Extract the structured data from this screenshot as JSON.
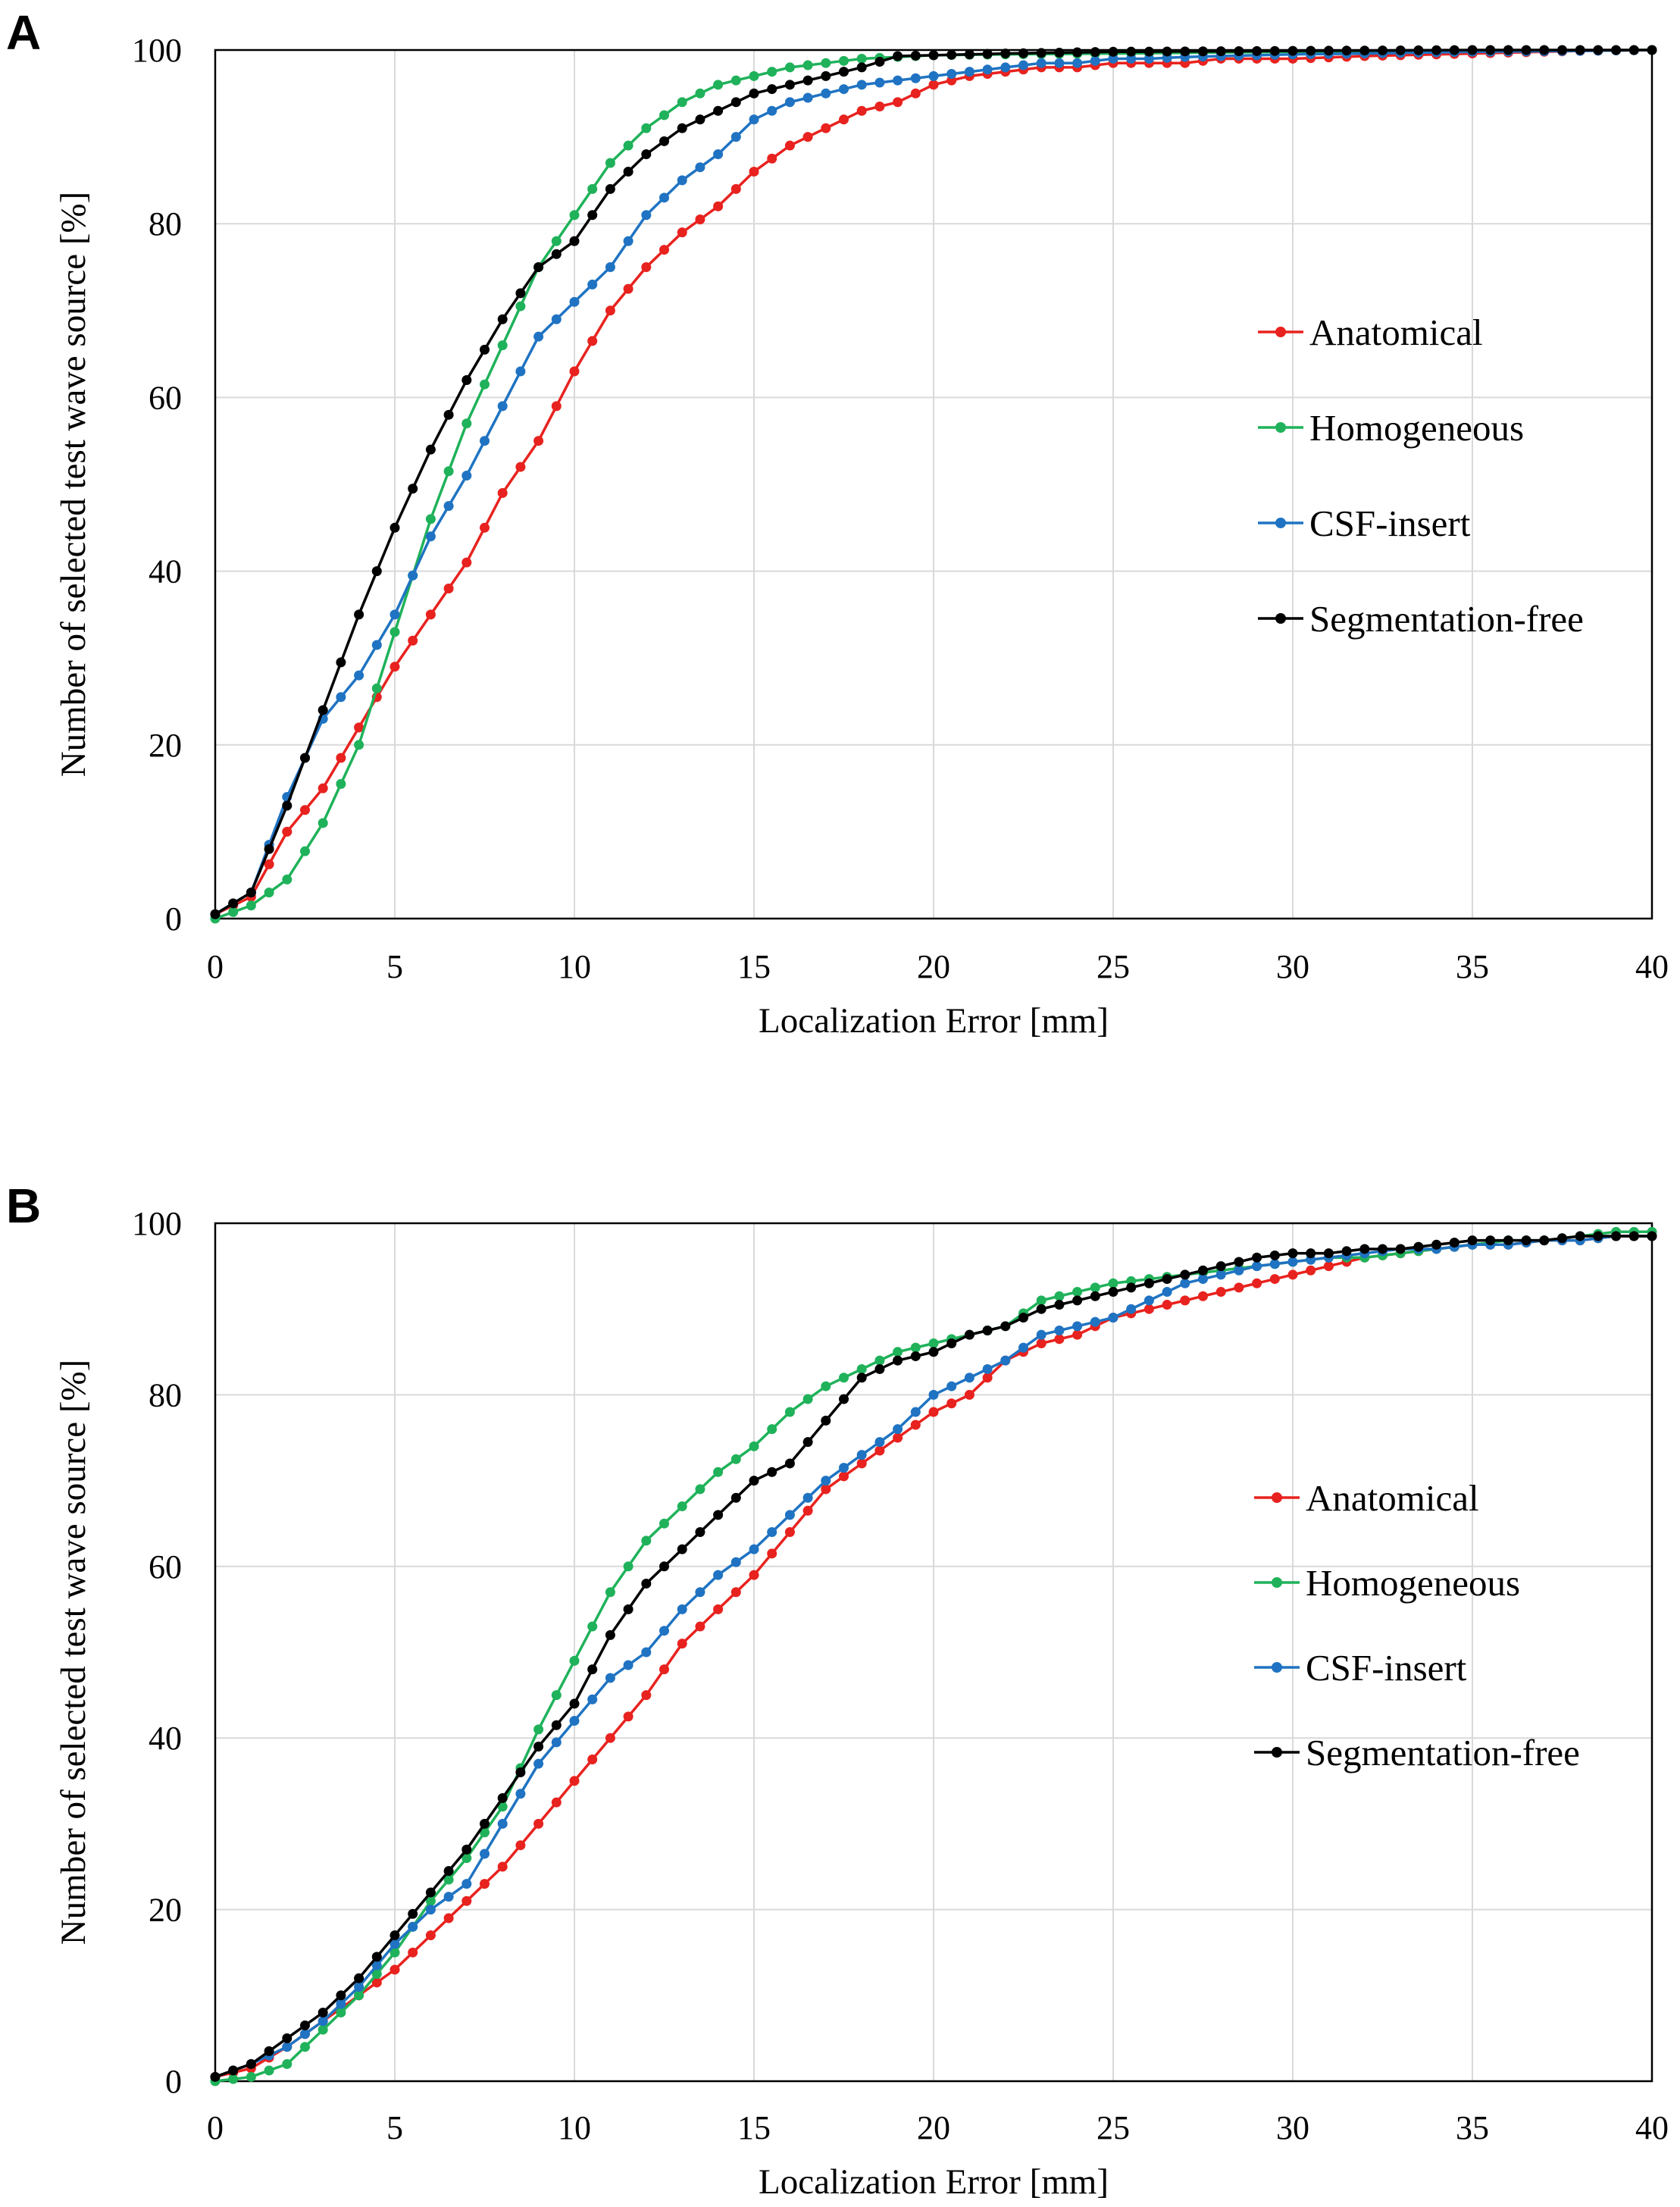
{
  "panels": [
    {
      "label": "A"
    },
    {
      "label": "B"
    }
  ],
  "colors": {
    "Anatomical": "#e8221e",
    "Homogeneous": "#1fb25a",
    "CSF-insert": "#1f73c2",
    "Segmentation-free": "#000000",
    "grid": "#d9d9d9",
    "axis": "#000000"
  },
  "chart_data": [
    {
      "panel": "A",
      "type": "line",
      "title": "",
      "xlabel": "Localization Error [mm]",
      "ylabel": "Number of selected test wave source [%]",
      "xlim": [
        0,
        40
      ],
      "ylim": [
        0,
        100
      ],
      "xticks": [
        0,
        5,
        10,
        15,
        20,
        25,
        30,
        35,
        40
      ],
      "yticks": [
        0,
        20,
        40,
        60,
        80,
        100
      ],
      "grid": true,
      "legend_position": "right",
      "marker_step_mm": 0.5,
      "series": [
        {
          "name": "Anatomical",
          "x": [
            0,
            1,
            2,
            3,
            4,
            5,
            6,
            7,
            8,
            9,
            10,
            11,
            12,
            13,
            14,
            15,
            16,
            17,
            18,
            19,
            20,
            21,
            22,
            23,
            24,
            25,
            26,
            27,
            28,
            29,
            30,
            32,
            34,
            36,
            38,
            40
          ],
          "y": [
            0.5,
            2.5,
            10,
            15,
            22,
            29,
            35,
            41,
            49,
            55,
            63,
            70,
            75,
            79,
            82,
            86,
            89,
            91,
            93,
            94,
            96,
            97,
            97.5,
            98,
            98,
            98.5,
            98.5,
            98.5,
            99,
            99,
            99,
            99.3,
            99.5,
            99.7,
            99.9,
            100
          ]
        },
        {
          "name": "Homogeneous",
          "x": [
            0,
            1,
            2,
            3,
            4,
            5,
            6,
            7,
            8,
            9,
            10,
            11,
            12,
            13,
            14,
            15,
            16,
            17,
            18,
            19,
            20,
            22,
            25,
            30,
            35,
            40
          ],
          "y": [
            0,
            1.5,
            4.5,
            11,
            20,
            33,
            46,
            57,
            66,
            75,
            81,
            87,
            91,
            94,
            96,
            97,
            98,
            98.5,
            99,
            99.2,
            99.4,
            99.5,
            99.6,
            99.8,
            99.9,
            100
          ]
        },
        {
          "name": "CSF-insert",
          "x": [
            0,
            1,
            2,
            3,
            4,
            5,
            6,
            7,
            8,
            9,
            10,
            11,
            12,
            13,
            14,
            15,
            16,
            17,
            18,
            19,
            20,
            21,
            22,
            23,
            24,
            25,
            26,
            27,
            28,
            29,
            30,
            32,
            35,
            38,
            40
          ],
          "y": [
            0.5,
            3,
            14,
            23,
            28,
            35,
            44,
            51,
            59,
            67,
            71,
            75,
            81,
            85,
            88,
            92,
            94,
            95,
            96,
            96.5,
            97,
            97.5,
            98,
            98.5,
            98.5,
            99,
            99,
            99.2,
            99.3,
            99.4,
            99.5,
            99.6,
            99.8,
            99.9,
            100
          ]
        },
        {
          "name": "Segmentation-free",
          "x": [
            0,
            1,
            2,
            3,
            4,
            5,
            6,
            7,
            8,
            9,
            10,
            11,
            12,
            13,
            14,
            15,
            16,
            17,
            18,
            19,
            20,
            22,
            25,
            30,
            35,
            40
          ],
          "y": [
            0.5,
            3,
            13,
            24,
            35,
            45,
            54,
            62,
            69,
            75,
            78,
            84,
            88,
            91,
            93,
            95,
            96,
            97,
            98,
            99.3,
            99.4,
            99.6,
            99.8,
            99.9,
            100,
            100
          ]
        }
      ],
      "legend": [
        "Anatomical",
        "Homogeneous",
        "CSF-insert",
        "Segmentation-free"
      ]
    },
    {
      "panel": "B",
      "type": "line",
      "title": "",
      "xlabel": "Localization Error [mm]",
      "ylabel": "Number of selected test wave source [%]",
      "xlim": [
        0,
        40
      ],
      "ylim": [
        0,
        100
      ],
      "xticks": [
        0,
        5,
        10,
        15,
        20,
        25,
        30,
        35,
        40
      ],
      "yticks": [
        0,
        20,
        40,
        60,
        80,
        100
      ],
      "grid": true,
      "legend_position": "right",
      "marker_step_mm": 0.5,
      "series": [
        {
          "name": "Anatomical",
          "x": [
            0,
            1,
            2,
            3,
            4,
            5,
            6,
            7,
            8,
            9,
            10,
            11,
            12,
            13,
            14,
            15,
            16,
            17,
            18,
            19,
            20,
            21,
            22,
            23,
            24,
            25,
            26,
            27,
            28,
            29,
            30,
            31,
            32,
            33,
            34,
            35,
            36,
            37,
            38,
            39,
            40
          ],
          "y": [
            0.5,
            1.5,
            4,
            7,
            10,
            13,
            17,
            21,
            25,
            30,
            35,
            40,
            45,
            51,
            55,
            59,
            64,
            69,
            72,
            75,
            78,
            80,
            84,
            86,
            87,
            89,
            90,
            91,
            92,
            93,
            94,
            95,
            96,
            96.5,
            97,
            97.5,
            97.5,
            98,
            98,
            98.5,
            98.5
          ]
        },
        {
          "name": "Homogeneous",
          "x": [
            0,
            1,
            2,
            3,
            4,
            5,
            6,
            7,
            8,
            9,
            10,
            11,
            12,
            13,
            14,
            15,
            16,
            17,
            18,
            19,
            20,
            21,
            22,
            23,
            24,
            25,
            26,
            27,
            28,
            29,
            30,
            31,
            32,
            33,
            34,
            35,
            36,
            37,
            38,
            39,
            40
          ],
          "y": [
            0,
            0.5,
            2,
            6,
            10,
            15,
            21,
            26,
            32,
            41,
            49,
            57,
            63,
            67,
            71,
            74,
            78,
            81,
            83,
            85,
            86,
            87,
            88,
            91,
            92,
            93,
            93.5,
            94,
            94.5,
            95,
            95.5,
            96,
            96,
            96.5,
            97,
            97.5,
            98,
            98,
            98.5,
            99,
            99
          ]
        },
        {
          "name": "CSF-insert",
          "x": [
            0,
            1,
            2,
            3,
            4,
            5,
            6,
            7,
            8,
            9,
            10,
            11,
            12,
            13,
            14,
            15,
            16,
            17,
            18,
            19,
            20,
            21,
            22,
            23,
            24,
            25,
            26,
            27,
            28,
            29,
            30,
            31,
            32,
            33,
            34,
            35,
            36,
            37,
            38,
            39,
            40
          ],
          "y": [
            0.5,
            2,
            4,
            7,
            11,
            16,
            20,
            23,
            30,
            37,
            42,
            47,
            50,
            55,
            59,
            62,
            66,
            70,
            73,
            76,
            80,
            82,
            84,
            87,
            88,
            89,
            91,
            93,
            94,
            95,
            95.5,
            96,
            96.5,
            97,
            97,
            97.5,
            97.5,
            98,
            98,
            98.5,
            98.5
          ]
        },
        {
          "name": "Segmentation-free",
          "x": [
            0,
            1,
            2,
            3,
            4,
            5,
            6,
            7,
            8,
            9,
            10,
            11,
            12,
            13,
            14,
            15,
            16,
            17,
            18,
            19,
            20,
            21,
            22,
            23,
            24,
            25,
            26,
            27,
            28,
            29,
            30,
            31,
            32,
            33,
            34,
            35,
            36,
            37,
            38,
            39,
            40
          ],
          "y": [
            0.5,
            2,
            5,
            8,
            12,
            17,
            22,
            27,
            33,
            39,
            44,
            52,
            58,
            62,
            66,
            70,
            72,
            77,
            82,
            84,
            85,
            87,
            88,
            90,
            91,
            92,
            93,
            94,
            95,
            96,
            96.5,
            96.5,
            97,
            97,
            97.5,
            98,
            98,
            98,
            98.5,
            98.5,
            98.5
          ]
        }
      ],
      "legend": [
        "Anatomical",
        "Homogeneous",
        "CSF-insert",
        "Segmentation-free"
      ]
    }
  ]
}
